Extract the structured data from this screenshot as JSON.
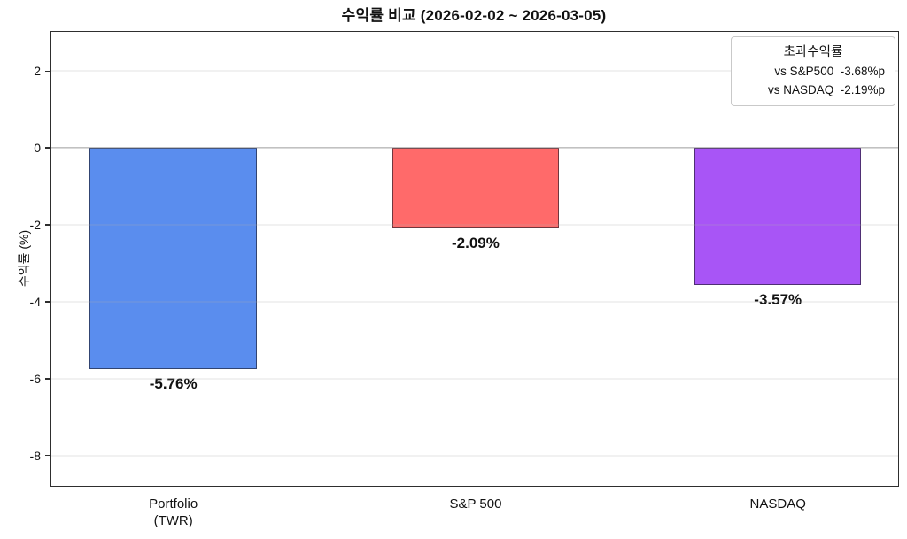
{
  "chart_data": {
    "type": "bar",
    "title": "수익률 비교 (2026-02-02 ~ 2026-03-05)",
    "xlabel": "",
    "ylabel": "수익률 (%)",
    "ylim": [
      -8.79,
      3.02
    ],
    "grid": true,
    "y_ticks": [
      2,
      0,
      -2,
      -4,
      -6,
      -8
    ],
    "categories": [
      "Portfolio\n(TWR)",
      "S&P 500",
      "NASDAQ"
    ],
    "values": [
      -5.76,
      -2.09,
      -3.57
    ],
    "value_labels": [
      "-5.76%",
      "-2.09%",
      "-3.57%"
    ],
    "bar_colors": [
      "#5A8DEE",
      "#FF6A6A",
      "#A855F6"
    ],
    "bar_edge_color": "rgba(25,25,35,0.62)",
    "zero_line_color": "#9a9a9a",
    "legend": {
      "position": "upper right",
      "title": "초과수익률",
      "entries": [
        "vs S&P500  -3.68%p",
        "vs NASDAQ  -2.19%p"
      ]
    }
  }
}
